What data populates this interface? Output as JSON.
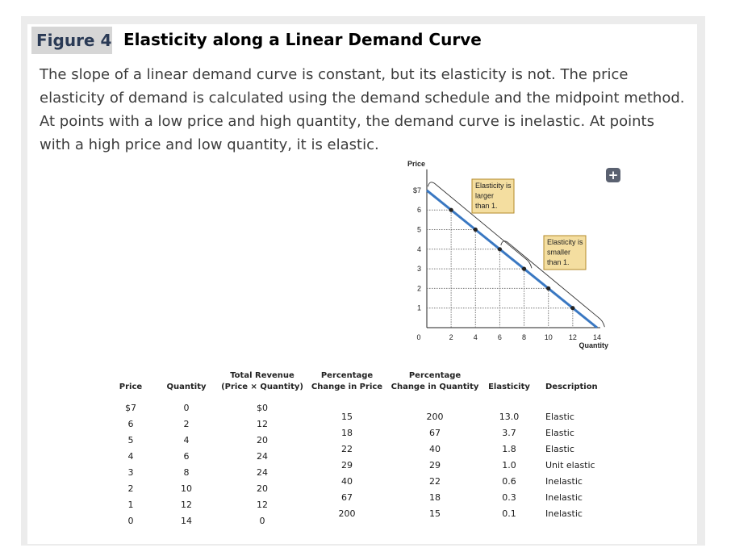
{
  "figure": {
    "label": "Figure 4",
    "title": "Elasticity along a Linear Demand Curve",
    "caption": "The slope of a linear demand curve is constant, but its elasticity is not. The price elasticity of demand is calculated using the demand schedule and the midpoint method. At points with a low price and high quantity, the demand curve is inelastic. At points with a high price and low quantity, it is elastic.",
    "expand_icon": "plus-icon",
    "expand_symbol": "+"
  },
  "chart_data": {
    "type": "line",
    "ylabel": "Price",
    "xlabel": "Quantity",
    "xlim": [
      0,
      14
    ],
    "ylim": [
      0,
      7
    ],
    "x_ticks": [
      "0",
      "2",
      "4",
      "6",
      "8",
      "10",
      "12",
      "14"
    ],
    "y_ticks": [
      "1",
      "2",
      "3",
      "4",
      "5",
      "6",
      "$7"
    ],
    "points": [
      {
        "x": 0,
        "y": 7
      },
      {
        "x": 2,
        "y": 6
      },
      {
        "x": 4,
        "y": 5
      },
      {
        "x": 6,
        "y": 4
      },
      {
        "x": 8,
        "y": 3
      },
      {
        "x": 10,
        "y": 2
      },
      {
        "x": 12,
        "y": 1
      },
      {
        "x": 14,
        "y": 0
      }
    ],
    "line_color": "#3a78c2",
    "annotations": [
      {
        "text_lines": [
          "Elasticity is",
          "larger",
          "than 1."
        ],
        "from_x": 0,
        "to_x": 8,
        "fill": "#f4dea0",
        "border": "#b38a2a"
      },
      {
        "text_lines": [
          "Elasticity is",
          "smaller",
          "than 1."
        ],
        "from_x": 6,
        "to_x": 14,
        "fill": "#f4dea0",
        "border": "#b38a2a"
      }
    ]
  },
  "table": {
    "headers": {
      "price": [
        "Price"
      ],
      "quantity": [
        "Quantity"
      ],
      "total_revenue": [
        "Total Revenue",
        "(Price × Quantity)"
      ],
      "pct_price": [
        "Percentage",
        "Change in Price"
      ],
      "pct_quantity": [
        "Percentage",
        "Change in Quantity"
      ],
      "elasticity": [
        "Elasticity"
      ],
      "description": [
        "Description"
      ]
    },
    "price": [
      "$7",
      "6",
      "5",
      "4",
      "3",
      "2",
      "1",
      "0"
    ],
    "quantity": [
      "0",
      "2",
      "4",
      "6",
      "8",
      "10",
      "12",
      "14"
    ],
    "total_revenue": [
      "$0",
      "12",
      "20",
      "24",
      "24",
      "20",
      "12",
      "0"
    ],
    "pct_price": [
      "15",
      "18",
      "22",
      "29",
      "40",
      "67",
      "200"
    ],
    "pct_quantity": [
      "200",
      "67",
      "40",
      "29",
      "22",
      "18",
      "15"
    ],
    "elasticity": [
      "13.0",
      "3.7",
      "1.8",
      "1.0",
      "0.6",
      "0.3",
      "0.1"
    ],
    "description": [
      "Elastic",
      "Elastic",
      "Elastic",
      "Unit elastic",
      "Inelastic",
      "Inelastic",
      "Inelastic"
    ]
  }
}
